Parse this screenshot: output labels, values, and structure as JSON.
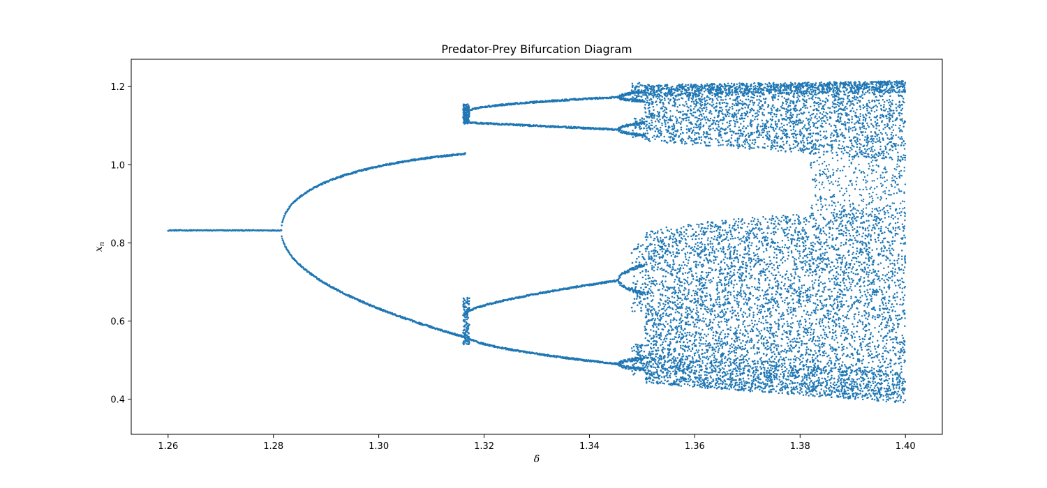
{
  "chart_data": {
    "type": "scatter",
    "title": "Predator-Prey Bifurcation Diagram",
    "xlabel": "δ",
    "ylabel_main": "x",
    "ylabel_sub": "n",
    "xlim": [
      1.253,
      1.407
    ],
    "ylim": [
      0.31,
      1.27
    ],
    "xticks": [
      1.26,
      1.28,
      1.3,
      1.32,
      1.34,
      1.36,
      1.38,
      1.4
    ],
    "xtick_labels": [
      "1.26",
      "1.28",
      "1.30",
      "1.32",
      "1.34",
      "1.36",
      "1.38",
      "1.40"
    ],
    "yticks": [
      0.4,
      0.6,
      0.8,
      1.0,
      1.2
    ],
    "ytick_labels": [
      "0.4",
      "0.6",
      "0.8",
      "1.0",
      "1.2"
    ],
    "grid": false,
    "marker_color": "#1f77b4",
    "series": [
      {
        "points": [
          [
            1.26,
            0.832
          ],
          [
            1.27,
            0.832
          ],
          [
            1.28,
            0.832
          ],
          [
            1.282,
            0.832
          ],
          [
            1.284,
            0.88
          ],
          [
            1.29,
            0.96
          ],
          [
            1.3,
            1.04
          ],
          [
            1.31,
            1.105
          ],
          [
            1.316,
            1.135
          ],
          [
            1.284,
            0.78
          ],
          [
            1.29,
            0.715
          ],
          [
            1.3,
            0.655
          ],
          [
            1.31,
            0.61
          ],
          [
            1.316,
            0.585
          ],
          [
            1.32,
            1.14
          ],
          [
            1.33,
            1.155
          ],
          [
            1.34,
            1.165
          ],
          [
            1.348,
            1.172
          ],
          [
            1.32,
            1.105
          ],
          [
            1.33,
            1.098
          ],
          [
            1.34,
            1.092
          ],
          [
            1.345,
            1.09
          ],
          [
            1.32,
            0.64
          ],
          [
            1.33,
            0.67
          ],
          [
            1.34,
            0.695
          ],
          [
            1.345,
            0.705
          ],
          [
            1.32,
            0.55
          ],
          [
            1.33,
            0.525
          ],
          [
            1.34,
            0.5
          ],
          [
            1.345,
            0.49
          ],
          [
            1.36,
            1.12
          ],
          [
            1.38,
            1.1
          ],
          [
            1.4,
            1.09
          ],
          [
            1.36,
            0.62
          ],
          [
            1.38,
            0.62
          ],
          [
            1.4,
            0.6
          ]
        ]
      }
    ]
  }
}
